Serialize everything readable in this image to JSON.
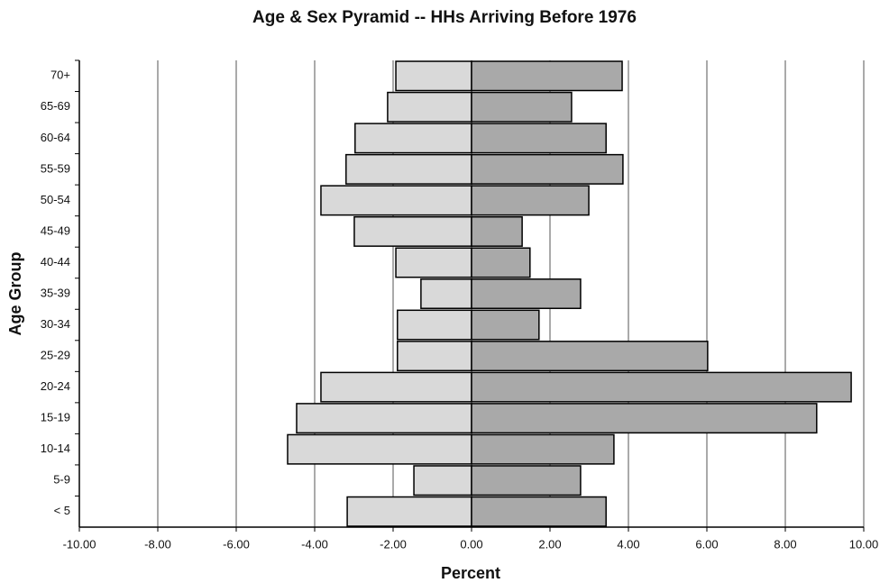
{
  "chart_data": {
    "type": "pyramid",
    "title": "Age & Sex Pyramid -- HHs Arriving Before 1976",
    "xlabel": "Percent",
    "ylabel": "Age Group",
    "categories": [
      "70+",
      "65-69",
      "60-64",
      "55-59",
      "50-54",
      "45-49",
      "40-44",
      "35-39",
      "30-34",
      "25-29",
      "20-24",
      "15-19",
      "10-14",
      "5-9",
      "< 5"
    ],
    "series": [
      {
        "color": "#d9d9d9",
        "values": [
          -1.93,
          -2.14,
          -2.97,
          -3.2,
          -3.84,
          -2.99,
          -1.93,
          -1.29,
          -1.89,
          -1.89,
          -3.84,
          -4.46,
          -4.69,
          -1.47,
          -3.17
        ]
      },
      {
        "color": "#a9a9a9",
        "values": [
          3.84,
          2.55,
          3.43,
          3.86,
          2.99,
          1.29,
          1.49,
          2.78,
          1.72,
          6.02,
          9.68,
          8.8,
          3.63,
          2.78,
          3.43
        ]
      }
    ],
    "xlim": [
      -10,
      10
    ],
    "xticks": [
      {
        "value": -10,
        "label": "-10.00"
      },
      {
        "value": -8,
        "label": "-8.00"
      },
      {
        "value": -6,
        "label": "-6.00"
      },
      {
        "value": -4,
        "label": "-4.00"
      },
      {
        "value": -2,
        "label": "-2.00"
      },
      {
        "value": 0,
        "label": "0.00"
      },
      {
        "value": 2,
        "label": "2.00"
      },
      {
        "value": 4,
        "label": "4.00"
      },
      {
        "value": 6,
        "label": "6.00"
      },
      {
        "value": 8,
        "label": "8.00"
      },
      {
        "value": 10,
        "label": "10.00"
      }
    ],
    "grid": true
  }
}
